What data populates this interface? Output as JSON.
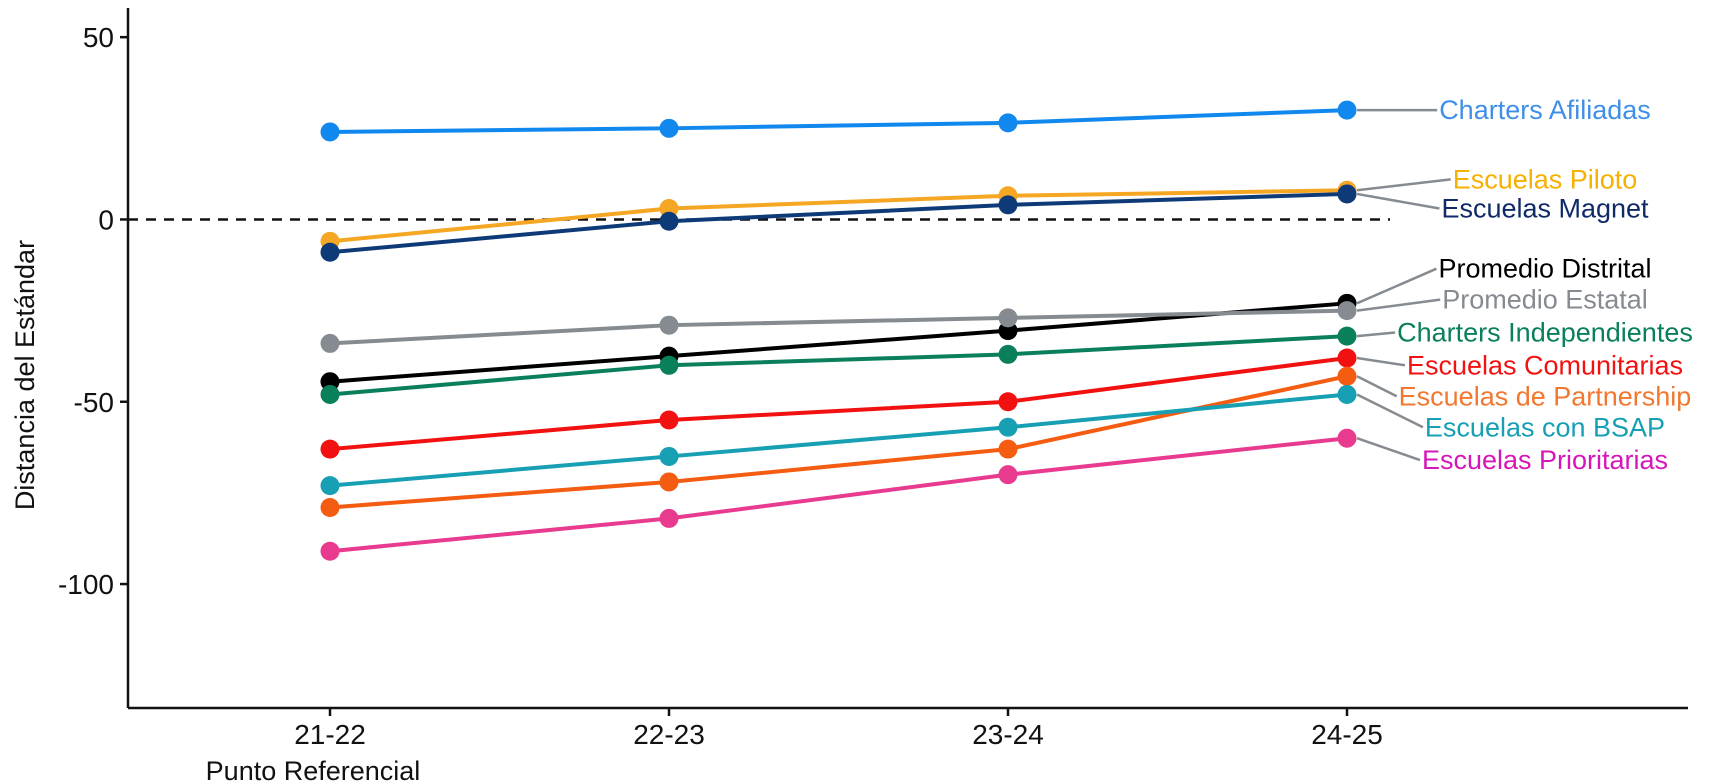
{
  "chart_data": {
    "type": "line",
    "title": "",
    "xlabel": "Punto Referencial",
    "ylabel": "Distancia del Estándar",
    "categories": [
      "21-22",
      "22-23",
      "23-24",
      "24-25"
    ],
    "ylim": [
      -134,
      58
    ],
    "yticks": [
      50,
      0,
      -50,
      -100
    ],
    "yticks_labels": [
      "50",
      "0",
      "-50",
      "-100"
    ],
    "reference_line": 0,
    "grid": false,
    "legend": "direct-labels-right",
    "series": [
      {
        "name": "Charters Afiliadas",
        "values": [
          24,
          25,
          26.5,
          30
        ],
        "color": "#1188ee",
        "label_color": "#3f8fe8"
      },
      {
        "name": "Escuelas Piloto",
        "values": [
          -6,
          3,
          6.5,
          8
        ],
        "color": "#f5a623",
        "label_color": "#f5b000"
      },
      {
        "name": "Escuelas Magnet",
        "values": [
          -9,
          -0.5,
          4,
          7
        ],
        "color": "#0f3a78",
        "label_color": "#0f2a66"
      },
      {
        "name": "Promedio Distrital",
        "values": [
          -44.5,
          -37.5,
          -30.5,
          -23
        ],
        "color": "#000000",
        "label_color": "#000000"
      },
      {
        "name": "Promedio Estatal",
        "values": [
          -34,
          -29,
          -27,
          -25
        ],
        "color": "#858b90",
        "label_color": "#858b90"
      },
      {
        "name": "Charters Independientes",
        "values": [
          -48,
          -40,
          -37,
          -32
        ],
        "color": "#0a7f5c",
        "label_color": "#0a7f5c"
      },
      {
        "name": "Escuelas Comunitarias",
        "values": [
          -63,
          -55,
          -50,
          -38
        ],
        "color": "#f21111",
        "label_color": "#f21111"
      },
      {
        "name": "Escuelas de Partnership",
        "values": [
          -79,
          -72,
          -63,
          -43
        ],
        "color": "#f45c11",
        "label_color": "#f27830"
      },
      {
        "name": "Escuelas con BSAP",
        "values": [
          -73,
          -65,
          -57,
          -48
        ],
        "color": "#179fb4",
        "label_color": "#179fb4"
      },
      {
        "name": "Escuelas Prioritarias",
        "values": [
          -91,
          -82,
          -70,
          -60
        ],
        "color": "#e83b8f",
        "label_color": "#d616b8"
      }
    ],
    "label_y": [
      30,
      11,
      3,
      -13.5,
      -22,
      -31,
      -40,
      -48.5,
      -57,
      -66
    ]
  }
}
